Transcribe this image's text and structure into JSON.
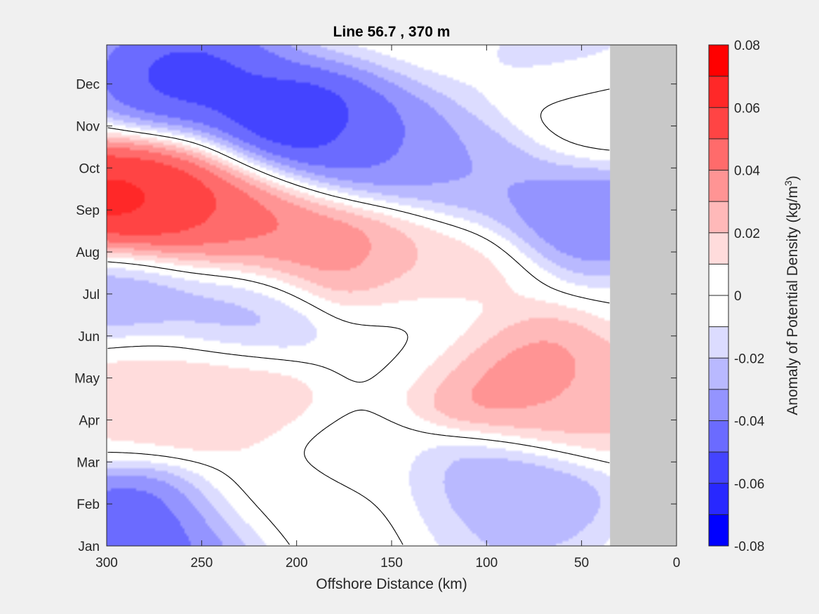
{
  "chart_data": {
    "type": "heatmap",
    "subtype": "filled-contour",
    "title": "Line 56.7 , 370 m",
    "xlabel": "Offshore Distance (km)",
    "xlim": [
      300,
      0
    ],
    "x_reversed": true,
    "x_ticks": [
      "300",
      "250",
      "200",
      "150",
      "100",
      "50",
      "0"
    ],
    "y_ticks": [
      "Jan",
      "Feb",
      "Mar",
      "Apr",
      "May",
      "Jun",
      "Jul",
      "Aug",
      "Sep",
      "Oct",
      "Nov",
      "Dec"
    ],
    "colorbar": {
      "label_main": "Anomaly of Potential Density (kg/m",
      "label_sup": "3",
      "label_end": ")",
      "range": [
        -0.08,
        0.08
      ],
      "step": 0.01,
      "tick_labels": [
        "0.08",
        "0.06",
        "0.04",
        "0.02",
        "0",
        "-0.02",
        "-0.04",
        "-0.06",
        "-0.08"
      ],
      "colors": [
        "#ff0000",
        "#ff2828",
        "#ff4444",
        "#ff6b6b",
        "#ff9494",
        "#ffb9b9",
        "#ffdcdc",
        "#ffffff",
        "#ffffff",
        "#dcdcff",
        "#b9b9ff",
        "#9494ff",
        "#6b6bff",
        "#4444ff",
        "#2828ff",
        "#0000ff"
      ]
    },
    "no_data_color": "#c8c8c8",
    "no_data_region_km": [
      0,
      35
    ],
    "field_features": [
      {
        "x_km": 300,
        "month": 9.1,
        "value": 0.07
      },
      {
        "x_km": 262,
        "month": 9.2,
        "value": 0.062
      },
      {
        "x_km": 225,
        "month": 8.6,
        "value": 0.045
      },
      {
        "x_km": 180,
        "month": 8.0,
        "value": 0.042
      },
      {
        "x_km": 130,
        "month": 7.6,
        "value": 0.018
      },
      {
        "x_km": 258,
        "month": 12.2,
        "value": -0.058
      },
      {
        "x_km": 200,
        "month": 11.0,
        "value": -0.065
      },
      {
        "x_km": 160,
        "month": 10.4,
        "value": -0.045
      },
      {
        "x_km": 105,
        "month": 9.9,
        "value": -0.032
      },
      {
        "x_km": 45,
        "month": 9.0,
        "value": -0.045
      },
      {
        "x_km": 55,
        "month": 12.4,
        "value": -0.015
      },
      {
        "x_km": 40,
        "month": 11.2,
        "value": 0.014
      },
      {
        "x_km": 230,
        "month": 6.6,
        "value": -0.028
      },
      {
        "x_km": 300,
        "month": 6.9,
        "value": -0.035
      },
      {
        "x_km": 92,
        "month": 5.1,
        "value": 0.044
      },
      {
        "x_km": 60,
        "month": 4.4,
        "value": 0.028
      },
      {
        "x_km": 240,
        "month": 4.6,
        "value": 0.022
      },
      {
        "x_km": 290,
        "month": 4.9,
        "value": 0.018
      },
      {
        "x_km": 135,
        "month": 5.9,
        "value": -0.006
      },
      {
        "x_km": 172,
        "month": 2.7,
        "value": -0.006
      },
      {
        "x_km": 90,
        "month": 2.3,
        "value": -0.035
      },
      {
        "x_km": 110,
        "month": 1.6,
        "value": -0.022
      },
      {
        "x_km": 285,
        "month": 1.3,
        "value": -0.055
      },
      {
        "x_km": 250,
        "month": 1.0,
        "value": -0.045
      },
      {
        "x_km": 210,
        "month": 1.8,
        "value": 0.015
      },
      {
        "x_km": 160,
        "month": 1.2,
        "value": 0.01
      }
    ]
  }
}
